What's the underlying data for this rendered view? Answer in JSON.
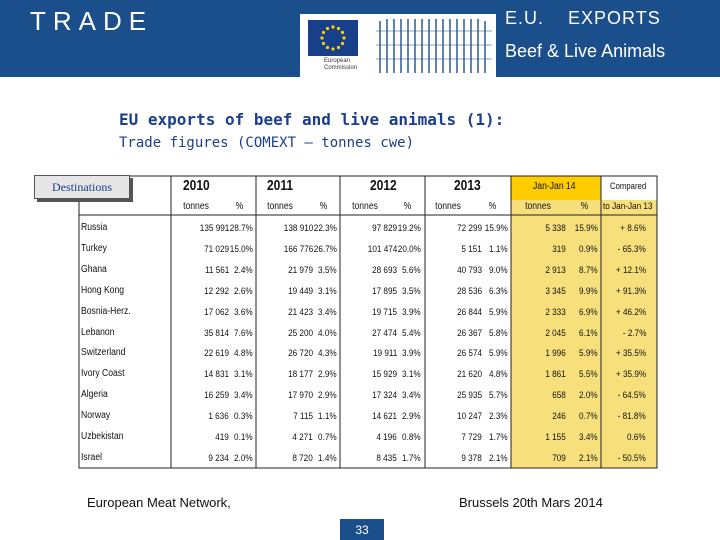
{
  "header": {
    "left_title": "TRADE",
    "right_top": "E.U.    EXPORTS",
    "right_bottom": "Beef & Live Animals",
    "logo_org_line1": "European",
    "logo_org_line2": "Commission"
  },
  "colors": {
    "header_bg": "#1b4f8c",
    "title_text": "#1b3f8a",
    "highlight": "#f7e07c",
    "highlight_header": "#ffcc00"
  },
  "title": "EU exports of beef and live animals (1):",
  "subtitle": "Trade figures (COMEXT – tonnes cwe)",
  "table": {
    "destinations_label": "Destinations",
    "years": [
      "2010",
      "2011",
      "2012",
      "2013",
      "Jan-Jan 14"
    ],
    "compared_line1": "Compared",
    "compared_line2": "to Jan-Jan 13",
    "unit_tonnes": "tonnes",
    "unit_pct": "%",
    "rows": [
      {
        "country": "Russia",
        "v": [
          "135 991",
          "28.7%",
          "138 910",
          "22.3%",
          "97 829",
          "19.2%",
          "72 299",
          "15.9%",
          "5 338",
          "15.9%",
          "+ 8.6%"
        ]
      },
      {
        "country": "Turkey",
        "v": [
          "71 029",
          "15.0%",
          "166 776",
          "26.7%",
          "101 474",
          "20.0%",
          "5 151",
          "1.1%",
          "319",
          "0.9%",
          "- 65.3%"
        ]
      },
      {
        "country": "Ghana",
        "v": [
          "11 561",
          "2.4%",
          "21 979",
          "3.5%",
          "28 693",
          "5.6%",
          "40 793",
          "9.0%",
          "2 913",
          "8.7%",
          "+ 12.1%"
        ]
      },
      {
        "country": "Hong Kong",
        "v": [
          "12 292",
          "2.6%",
          "19 449",
          "3.1%",
          "17 895",
          "3.5%",
          "28 536",
          "6.3%",
          "3 345",
          "9.9%",
          "+ 91.3%"
        ]
      },
      {
        "country": "Bosnia-Herz.",
        "v": [
          "17 062",
          "3.6%",
          "21 423",
          "3.4%",
          "19 715",
          "3.9%",
          "26 844",
          "5.9%",
          "2 333",
          "6.9%",
          "+ 46.2%"
        ]
      },
      {
        "country": "Lebanon",
        "v": [
          "35 814",
          "7.6%",
          "25 200",
          "4.0%",
          "27 474",
          "5.4%",
          "26 367",
          "5.8%",
          "2 045",
          "6.1%",
          "- 2.7%"
        ]
      },
      {
        "country": "Switzerland",
        "v": [
          "22 619",
          "4.8%",
          "26 720",
          "4.3%",
          "19 911",
          "3.9%",
          "26 574",
          "5.9%",
          "1 996",
          "5.9%",
          "+ 35.5%"
        ]
      },
      {
        "country": "Ivory Coast",
        "v": [
          "14 831",
          "3.1%",
          "18 177",
          "2.9%",
          "15 929",
          "3.1%",
          "21 620",
          "4.8%",
          "1 861",
          "5.5%",
          "+ 35.9%"
        ]
      },
      {
        "country": "Algeria",
        "v": [
          "16 259",
          "3.4%",
          "17 970",
          "2.9%",
          "17 324",
          "3.4%",
          "25 935",
          "5.7%",
          "658",
          "2.0%",
          "- 64.5%"
        ]
      },
      {
        "country": "Norway",
        "v": [
          "1 636",
          "0.3%",
          "7 115",
          "1.1%",
          "14 621",
          "2.9%",
          "10 247",
          "2.3%",
          "246",
          "0.7%",
          "- 81.8%"
        ]
      },
      {
        "country": "Uzbekistan",
        "v": [
          "419",
          "0.1%",
          "4 271",
          "0.7%",
          "4 196",
          "0.8%",
          "7 729",
          "1.7%",
          "1 155",
          "3.4%",
          "0.6%"
        ]
      },
      {
        "country": "Israel",
        "v": [
          "9 234",
          "2.0%",
          "8 720",
          "1.4%",
          "8 435",
          "1.7%",
          "9 378",
          "2.1%",
          "709",
          "2.1%",
          "- 50.5%"
        ]
      }
    ]
  },
  "footer": {
    "left": "European Meat Network,",
    "right": "Brussels 20th Mars 2014",
    "page": "33"
  }
}
